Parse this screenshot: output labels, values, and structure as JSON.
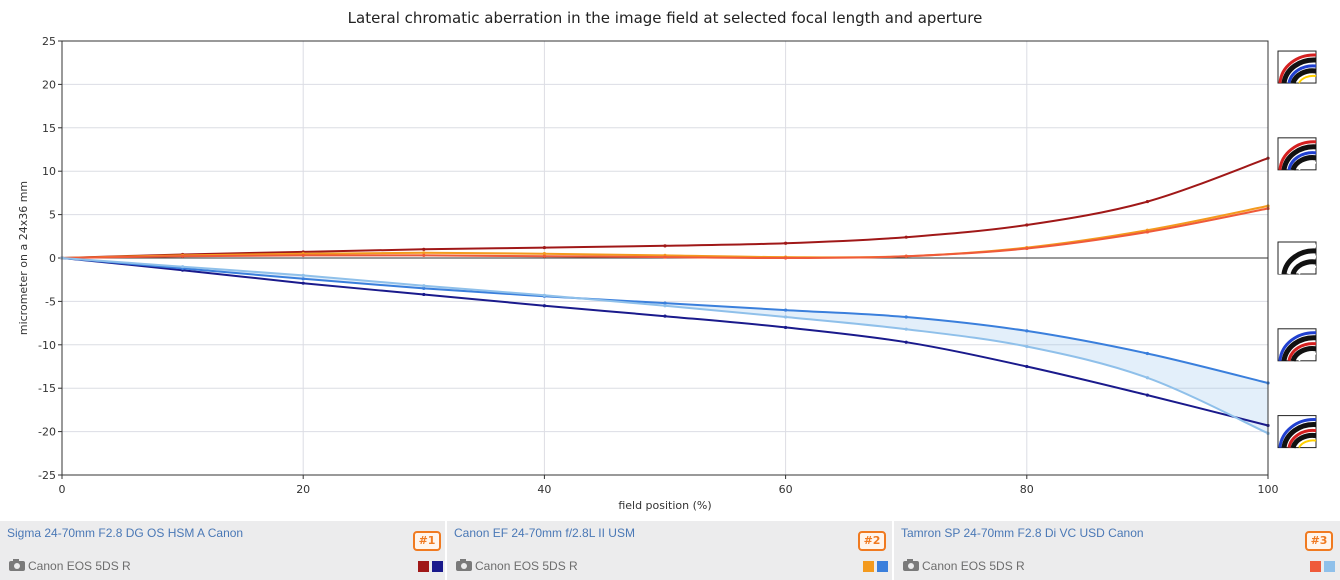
{
  "chart_data": {
    "type": "line",
    "title": "Lateral chromatic aberration in the image field at selected focal length and aperture",
    "xlabel": "field position (%)",
    "ylabel": "micrometer on a 24x36 mm",
    "xlim": [
      0,
      100
    ],
    "ylim": [
      -25,
      25
    ],
    "x_ticks": [
      0,
      20,
      40,
      60,
      80,
      100
    ],
    "y_ticks": [
      -25,
      -20,
      -15,
      -10,
      -5,
      0,
      5,
      10,
      15,
      20,
      25
    ],
    "x": [
      0,
      10,
      20,
      30,
      40,
      50,
      60,
      70,
      80,
      90,
      100
    ],
    "series": [
      {
        "name": "Sigma 24-70mm F2.8 DG OS HSM A Canon (red-cyan)",
        "color": "#a01818",
        "values": [
          0,
          0.4,
          0.7,
          1.0,
          1.2,
          1.4,
          1.7,
          2.4,
          3.8,
          6.5,
          11.5
        ]
      },
      {
        "name": "Sigma 24-70mm F2.8 DG OS HSM A Canon (blue-yellow)",
        "color": "#1a1a8c",
        "values": [
          0,
          -1.4,
          -2.9,
          -4.2,
          -5.5,
          -6.7,
          -8.0,
          -9.7,
          -12.5,
          -15.8,
          -19.3
        ]
      },
      {
        "name": "Canon EF 24-70mm f/2.8L II USM (red-cyan)",
        "color": "#f39a1e",
        "values": [
          0,
          0.3,
          0.5,
          0.6,
          0.5,
          0.3,
          0.1,
          0.2,
          1.2,
          3.2,
          6.0
        ]
      },
      {
        "name": "Canon EF 24-70mm f/2.8L II USM (blue-yellow)",
        "color": "#3a7fdc",
        "values": [
          0,
          -1.2,
          -2.4,
          -3.5,
          -4.4,
          -5.2,
          -6.0,
          -6.8,
          -8.4,
          -11.0,
          -14.4
        ]
      },
      {
        "name": "Tamron SP 24-70mm F2.8 Di VC USD Canon (red-cyan)",
        "color": "#ef5a3a",
        "values": [
          0,
          0.2,
          0.3,
          0.3,
          0.2,
          0.1,
          0.0,
          0.2,
          1.1,
          3.0,
          5.7
        ]
      },
      {
        "name": "Tamron SP 24-70mm F2.8 Di VC USD Canon (blue-yellow)",
        "color": "#8fc0ea",
        "values": [
          0,
          -1.0,
          -2.0,
          -3.2,
          -4.3,
          -5.5,
          -6.8,
          -8.2,
          -10.2,
          -13.8,
          -20.2
        ]
      }
    ],
    "side_icon_levels": [
      22,
      12,
      0,
      -10,
      -20
    ]
  },
  "legend": [
    {
      "lens": "Sigma 24-70mm F2.8 DG OS HSM A Canon",
      "camera": "Canon EOS 5DS R",
      "badge": "#1",
      "swatch_a": "#a01818",
      "swatch_b": "#1a1a8c"
    },
    {
      "lens": "Canon EF 24-70mm f/2.8L II USM",
      "camera": "Canon EOS 5DS R",
      "badge": "#2",
      "swatch_a": "#f39a1e",
      "swatch_b": "#3a7fdc"
    },
    {
      "lens": "Tamron SP 24-70mm F2.8 Di VC USD Canon",
      "camera": "Canon EOS 5DS R",
      "badge": "#3",
      "swatch_a": "#ef5a3a",
      "swatch_b": "#8fc0ea"
    }
  ]
}
